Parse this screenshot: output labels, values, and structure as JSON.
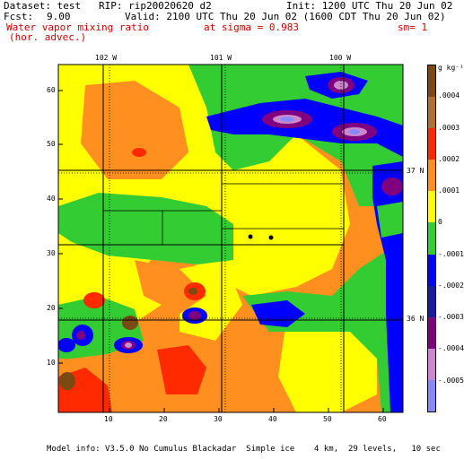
{
  "header": {
    "dataset_line": "Dataset: test   RIP: rip20020620 d2",
    "init": "Init: 1200 UTC Thu 20 Jun 02",
    "fcst_label": "Fcst:",
    "fcst_value": "9.00",
    "valid": "Valid: 2100 UTC Thu 20 Jun 02 (1600 CDT Thu 20 Jun 02)",
    "field_line1": "Water vapor mixing ratio",
    "field_line2": "(hor. advec.)",
    "sigma": "at sigma = 0.983",
    "sm": "sm= 1"
  },
  "map": {
    "top_lon_labels": [
      "102 W",
      "101 W",
      "100 W"
    ],
    "right_lat_labels": [
      "37 N",
      "36 N"
    ],
    "y_ticks": [
      "60",
      "50",
      "40",
      "30",
      "20",
      "10"
    ],
    "x_ticks": [
      "10",
      "20",
      "30",
      "40",
      "50",
      "60"
    ]
  },
  "colorbar": {
    "unit": "g kg⁻¹",
    "labels": [
      ".0004",
      ".0003",
      ".0002",
      ".0001",
      "0",
      "-.0001",
      "-.0002",
      "-.0003",
      "-.0004",
      "-.0005"
    ],
    "colors": [
      "#7a4a12",
      "#b07030",
      "#ff2a00",
      "#ff9020",
      "#ffff00",
      "#33cc33",
      "#0000ff",
      "#1a1aa0",
      "#800080",
      "#cc88cc",
      "#8888ff"
    ]
  },
  "footer": {
    "model_info": "Model info: V3.5.0 No Cumulus Blackadar  Simple ice    4 km,  29 levels,   10 sec"
  }
}
